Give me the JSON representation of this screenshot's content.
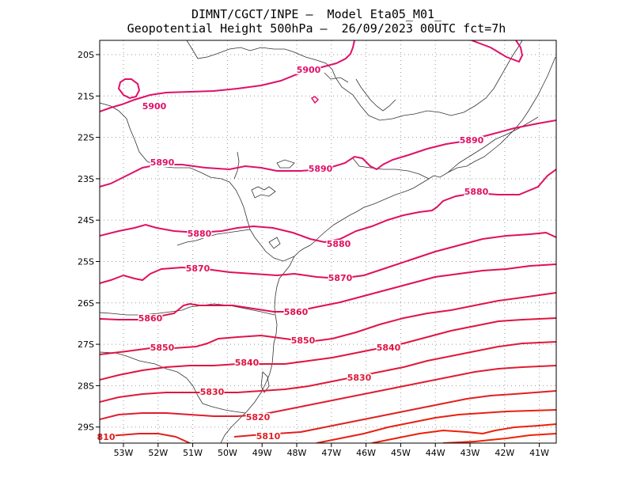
{
  "title_line1": "DIMNT/CGCT/INPE –  Model Eta05_M01_",
  "title_line2": "Geopotential Height 500hPa –  26/09/2023 00UTC fct=7h",
  "lat_labels": [
    "20S",
    "21S",
    "22S",
    "23S",
    "24S",
    "25S",
    "26S",
    "27S",
    "28S",
    "29S"
  ],
  "lon_labels": [
    "53W",
    "52W",
    "51W",
    "50W",
    "49W",
    "48W",
    "47W",
    "46W",
    "45W",
    "44W",
    "43W",
    "42W",
    "41W"
  ],
  "contour_labels": [
    {
      "text": "5900",
      "color": "#e0106a"
    },
    {
      "text": "5900",
      "color": "#e0106a"
    },
    {
      "text": "5890",
      "color": "#e01068"
    },
    {
      "text": "5890",
      "color": "#e01068"
    },
    {
      "text": "5890",
      "color": "#e01068"
    },
    {
      "text": "5880",
      "color": "#e01060"
    },
    {
      "text": "5880",
      "color": "#e01060"
    },
    {
      "text": "5880",
      "color": "#e01060"
    },
    {
      "text": "5870",
      "color": "#e0105a"
    },
    {
      "text": "5870",
      "color": "#e0105a"
    },
    {
      "text": "5860",
      "color": "#e01050"
    },
    {
      "text": "5860",
      "color": "#e01050"
    },
    {
      "text": "5850",
      "color": "#e01448"
    },
    {
      "text": "5850",
      "color": "#e01448"
    },
    {
      "text": "5840",
      "color": "#e01440"
    },
    {
      "text": "5840",
      "color": "#e01440"
    },
    {
      "text": "5830",
      "color": "#e01838"
    },
    {
      "text": "5830",
      "color": "#e01838"
    },
    {
      "text": "5820",
      "color": "#e01c30"
    },
    {
      "text": "5810",
      "color": "#e02020"
    },
    {
      "text": "810",
      "color": "#e02020"
    }
  ]
}
